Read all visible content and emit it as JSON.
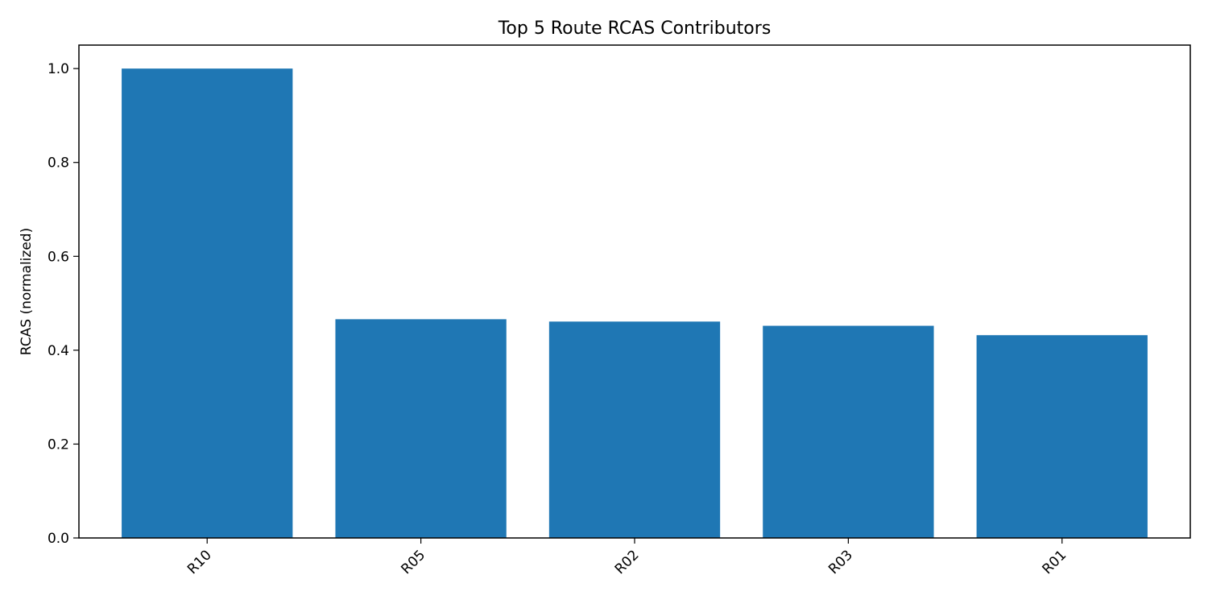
{
  "chart_data": {
    "type": "bar",
    "title": "Top 5 Route RCAS Contributors",
    "xlabel": "",
    "ylabel": "RCAS (normalized)",
    "categories": [
      "R10",
      "R05",
      "R02",
      "R03",
      "R01"
    ],
    "values": [
      1.0,
      0.466,
      0.461,
      0.452,
      0.432
    ],
    "ylim": [
      0,
      1.05
    ],
    "yticks": [
      "0.0",
      "0.2",
      "0.4",
      "0.6",
      "0.8",
      "1.0"
    ],
    "bar_color": "#1f77b4",
    "grid": false,
    "legend": "none"
  }
}
